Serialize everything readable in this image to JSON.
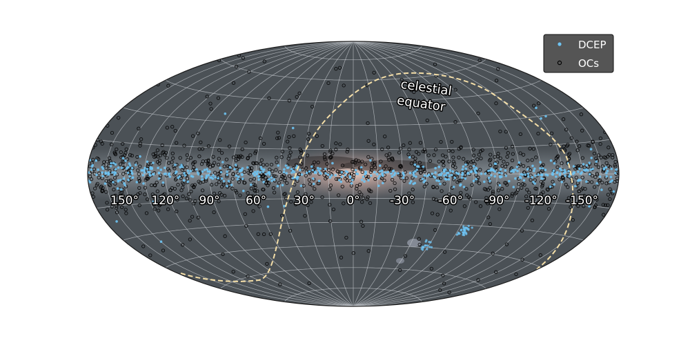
{
  "chart_data": {
    "type": "scatter",
    "projection": "aitoff",
    "coordinate_system": "galactic",
    "background": "all-sky Milky Way image",
    "grid": true,
    "legend_position": "top-right",
    "lon_tick_labels": [
      "150°",
      "120°",
      "90°",
      "60°",
      "30°",
      "0°",
      "-30°",
      "-60°",
      "-90°",
      "-120°",
      "-150°"
    ],
    "lon_ticks": [
      150,
      120,
      90,
      60,
      30,
      0,
      -30,
      -60,
      -90,
      -120,
      -150
    ],
    "lat_grid": [
      -75,
      -60,
      -45,
      -30,
      -15,
      0,
      15,
      30,
      45,
      60,
      75
    ],
    "annotation": "celestial\nequator",
    "colors": {
      "DCEP": "#6ec3f2",
      "OCs": "#000000",
      "equator_line": "#f5dfa8",
      "sky": "#4c5257",
      "legend_bg": "#555555"
    },
    "series": [
      {
        "name": "DCEP",
        "marker": "filled-dot",
        "description_points": "concentrated along galactic plane",
        "lat_spread_deg": 3,
        "approx_count": 500
      },
      {
        "name": "OCs",
        "marker": "open-circle",
        "description_points": "concentrated along galactic plane with wider spread",
        "lat_spread_deg": 9,
        "approx_count": 1100
      }
    ]
  }
}
